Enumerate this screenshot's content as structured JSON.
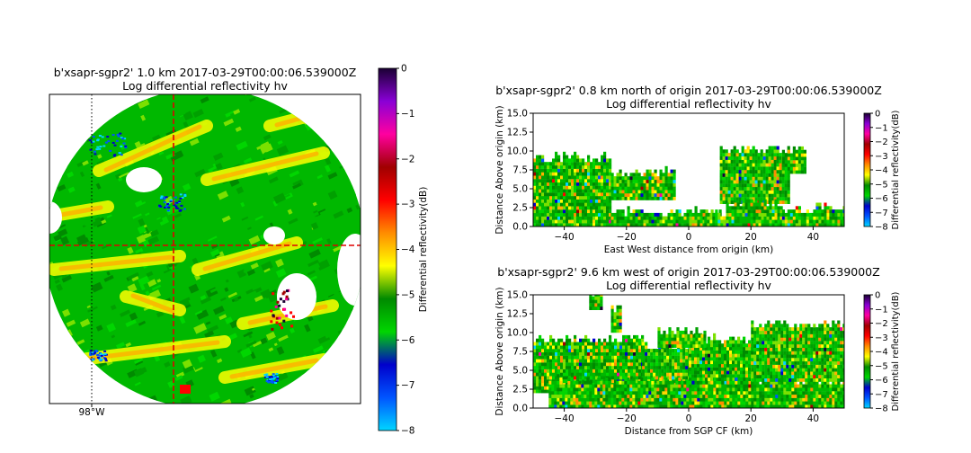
{
  "colors": {
    "scale": [
      "#00d6ff",
      "#0055ff",
      "#0000cc",
      "#00d600",
      "#008a00",
      "#ffff00",
      "#ff8c00",
      "#ff0000",
      "#a00000",
      "#ff00a0",
      "#8a00d6",
      "#1a0033"
    ],
    "ppi_bg": "#00b800",
    "crosshair": "#e00000"
  },
  "chart_data": [
    {
      "type": "heatmap",
      "title": "b'xsapr-sgpr2' 1.0 km 2017-03-29T00:00:06.539000Z",
      "subtitle": "Log differential reflectivity hv",
      "xlabel": "",
      "ylabel": "",
      "x_tick_labels": [
        "98°W"
      ],
      "crosshair": "dashed red lines through radar origin",
      "gridline": "dotted black line at 98°W",
      "colorbar": {
        "label": "Differential reflectivity(dB)",
        "range": [
          -8,
          0
        ],
        "ticks": [
          "0",
          "−1",
          "−2",
          "−3",
          "−4",
          "−5",
          "−6",
          "−7",
          "−8"
        ]
      }
    },
    {
      "type": "heatmap",
      "title": "b'xsapr-sgpr2' 0.8 km north of origin 2017-03-29T00:00:06.539000Z",
      "subtitle": "Log differential reflectivity hv",
      "xlabel": "East West distance from origin (km)",
      "ylabel": "Distance Above origin  (km)",
      "xlim": [
        -50,
        50
      ],
      "ylim": [
        0,
        15
      ],
      "x_ticks": [
        -40,
        -20,
        0,
        20,
        40
      ],
      "x_tick_labels": [
        "−40",
        "−20",
        "0",
        "20",
        "40"
      ],
      "y_tick_labels": [
        "0.0",
        "2.5",
        "5.0",
        "7.5",
        "10.0",
        "12.5",
        "15.0"
      ],
      "colorbar": {
        "label": "Differential reflectivity(dB)",
        "range": [
          -8,
          0
        ],
        "ticks": [
          "0",
          "−1",
          "−2",
          "−3",
          "−4",
          "−5",
          "−6",
          "−7",
          "−8"
        ]
      }
    },
    {
      "type": "heatmap",
      "title": "b'xsapr-sgpr2' 9.6 km west of origin 2017-03-29T00:00:06.539000Z",
      "subtitle": "Log differential reflectivity hv",
      "xlabel": "Distance from SGP CF (km)",
      "ylabel": "Distance Above origin  (km)",
      "xlim": [
        -50,
        50
      ],
      "ylim": [
        0,
        15
      ],
      "x_ticks": [
        -40,
        -20,
        0,
        20,
        40
      ],
      "x_tick_labels": [
        "−40",
        "−20",
        "0",
        "20",
        "40"
      ],
      "y_tick_labels": [
        "0.0",
        "2.5",
        "5.0",
        "7.5",
        "10.0",
        "12.5",
        "15.0"
      ],
      "colorbar": {
        "label": "Differential reflectivity(dB)",
        "range": [
          -8,
          0
        ],
        "ticks": [
          "0",
          "−1",
          "−2",
          "−3",
          "−4",
          "−5",
          "−6",
          "−7",
          "−8"
        ]
      }
    }
  ]
}
